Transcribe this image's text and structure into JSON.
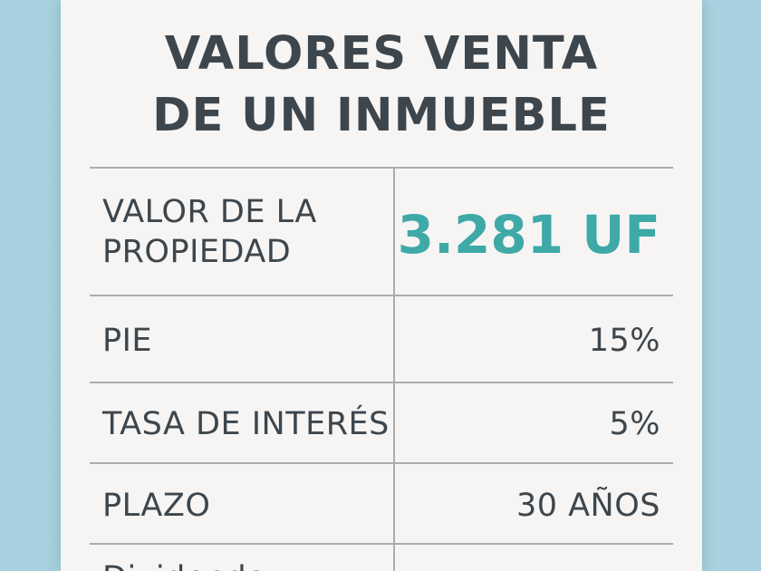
{
  "title": {
    "line1": "VALORES VENTA",
    "line2": "DE UN INMUEBLE"
  },
  "rows": [
    {
      "label_line1": "VALOR DE LA",
      "label_line2": "PROPIEDAD",
      "value": "3.281 UF"
    },
    {
      "label": "PIE",
      "value": "15%"
    },
    {
      "label": "TASA DE INTERÉS",
      "value": "5%"
    },
    {
      "label": "PLAZO",
      "value": "30 AÑOS"
    },
    {
      "label": "Dividendo",
      "value": ""
    }
  ],
  "colors": {
    "background": "#a9d3e0",
    "card": "#f6f5f4",
    "text": "#3d464d",
    "accent": "#3ea9a6",
    "rule": "#a9adb0"
  }
}
